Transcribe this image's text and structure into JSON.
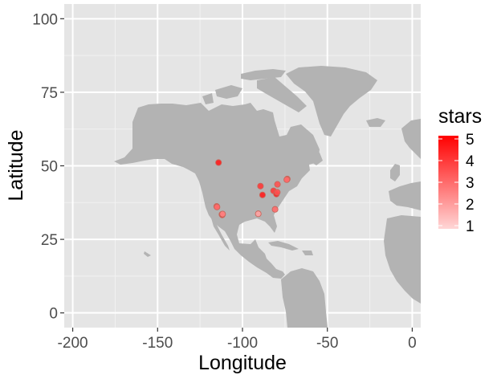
{
  "chart_data": {
    "type": "scatter",
    "xlabel": "Longitude",
    "ylabel": "Latitude",
    "xlim": [
      -205,
      5
    ],
    "ylim": [
      -5,
      105
    ],
    "x_ticks": [
      -200,
      -150,
      -100,
      -50,
      0
    ],
    "x_tick_labels": [
      "-200",
      "-150",
      "-100",
      "-50",
      "0"
    ],
    "y_ticks": [
      0,
      25,
      50,
      75,
      100
    ],
    "y_tick_labels": [
      "0",
      "25",
      "50",
      "75",
      "100"
    ],
    "grid": true,
    "background": "#e5e5e5",
    "land_color": "#b3b3b3",
    "legend": {
      "title": "stars",
      "position": "right",
      "labels": [
        "5",
        "4",
        "3",
        "2",
        "1"
      ],
      "values": [
        5,
        4,
        3,
        2,
        1
      ],
      "low_color": "#ffd6d6",
      "high_color": "#ff0000"
    },
    "points": [
      {
        "x": -114.1,
        "y": 51.1,
        "stars": 4.5
      },
      {
        "x": -115.2,
        "y": 36.2,
        "stars": 3.5
      },
      {
        "x": -115.0,
        "y": 36.0,
        "stars": 3.0
      },
      {
        "x": -112.1,
        "y": 33.5,
        "stars": 3.5
      },
      {
        "x": -111.9,
        "y": 33.3,
        "stars": 4.0
      },
      {
        "x": -111.7,
        "y": 33.6,
        "stars": 2.5
      },
      {
        "x": -89.4,
        "y": 43.1,
        "stars": 4.0
      },
      {
        "x": -88.2,
        "y": 40.1,
        "stars": 4.5
      },
      {
        "x": -90.7,
        "y": 33.7,
        "stars": 2.0
      },
      {
        "x": -81.7,
        "y": 41.5,
        "stars": 4.0
      },
      {
        "x": -80.0,
        "y": 40.4,
        "stars": 4.5
      },
      {
        "x": -79.5,
        "y": 41.0,
        "stars": 3.5
      },
      {
        "x": -79.4,
        "y": 43.7,
        "stars": 3.5
      },
      {
        "x": -80.8,
        "y": 35.2,
        "stars": 3.0
      },
      {
        "x": -73.6,
        "y": 45.5,
        "stars": 3.5
      },
      {
        "x": -73.9,
        "y": 45.3,
        "stars": 3.0
      }
    ]
  }
}
